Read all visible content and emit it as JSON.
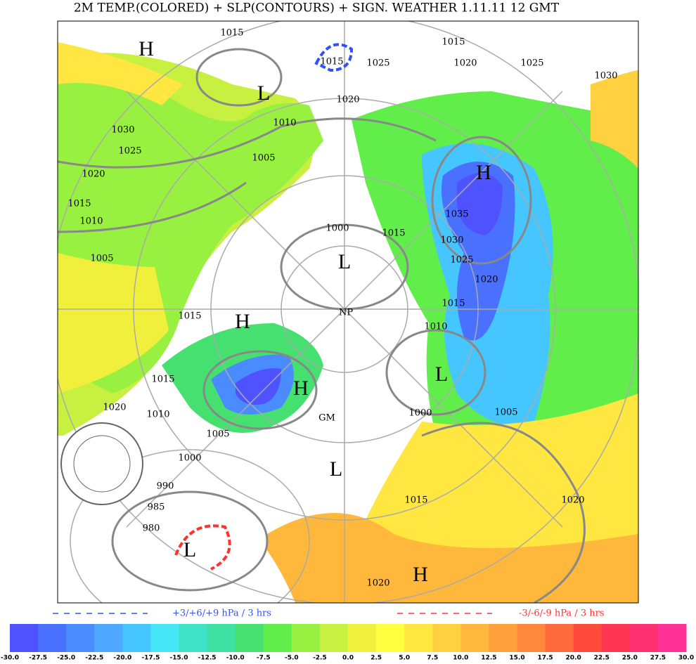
{
  "header": {
    "title": "2M TEMP.(COLORED) + SLP(CONTOURS) + SIGN. WEATHER 1.11.11 12  GMT"
  },
  "legend": {
    "rise": "+3/+6/+9 hPa / 3 hrs",
    "fall": "-3/-6/-9 hPa / 3 hrs"
  },
  "colorbar": {
    "labels": [
      "-30.0",
      "-27.5",
      "-25.0",
      "-22.5",
      "-20.0",
      "-17.5",
      "-15.0",
      "-12.5",
      "-10.0",
      "-7.5",
      "-5.0",
      "-2.5",
      "0.0",
      "2.5",
      "5.0",
      "7.5",
      "10.0",
      "12.5",
      "15.0",
      "17.5",
      "20.0",
      "22.5",
      "25.0",
      "27.5",
      "30.0"
    ],
    "colors": [
      "#4f52ff",
      "#4a70ff",
      "#4a8cff",
      "#4fa8ff",
      "#45c6ff",
      "#45e6f5",
      "#3fe3c8",
      "#3fe0a4",
      "#45e070",
      "#62ee4a",
      "#98f040",
      "#c8f040",
      "#f0f03c",
      "#ffff40",
      "#ffe640",
      "#ffd040",
      "#ffb83c",
      "#ffa03c",
      "#ff883c",
      "#ff6a3c",
      "#ff4a3c",
      "#ff3450",
      "#ff3072",
      "#ff3096"
    ]
  },
  "map": {
    "labels": [
      "H",
      "L",
      "1015",
      "1015",
      "1025",
      "1015",
      "1020",
      "1025",
      "1030",
      "1020",
      "1030",
      "1025",
      "1020",
      "1015",
      "1010",
      "1005",
      "1010",
      "1005",
      "H",
      "1035",
      "1030",
      "1025",
      "1020",
      "1015",
      "1010",
      "L",
      "1000",
      "1015",
      "NP",
      "H",
      "1015",
      "1010",
      "1005",
      "1000",
      "990",
      "985",
      "980",
      "L",
      "H",
      "GM",
      "L",
      "L",
      "1000",
      "1005",
      "1015",
      "1020",
      "1020",
      "H",
      "1020",
      "1015"
    ]
  }
}
